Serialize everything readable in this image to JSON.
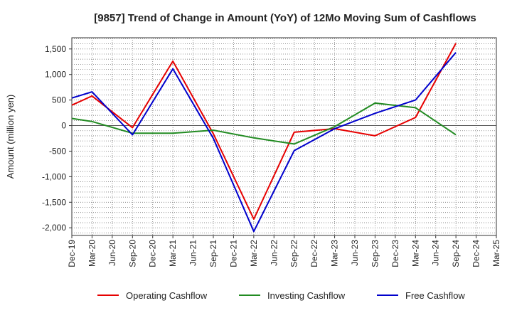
{
  "chart_data": {
    "type": "line",
    "title": "[9857]  Trend of Change in Amount (YoY) of 12Mo Moving Sum of Cashflows",
    "xlabel": "",
    "ylabel": "Amount (million yen)",
    "ylim": [
      -2150,
      1720
    ],
    "yticks": [
      -2000,
      -1500,
      -1000,
      -500,
      0,
      500,
      1000,
      1500
    ],
    "ytick_labels": [
      "-2,000",
      "-1,500",
      "-1,000",
      "-500",
      "0",
      "500",
      "1,000",
      "1,500"
    ],
    "categories": [
      "Dec-19",
      "Mar-20",
      "Jun-20",
      "Sep-20",
      "Dec-20",
      "Mar-21",
      "Jun-21",
      "Sep-21",
      "Dec-21",
      "Mar-22",
      "Jun-22",
      "Sep-22",
      "Dec-22",
      "Mar-23",
      "Jun-23",
      "Sep-23",
      "Dec-23",
      "Mar-24",
      "Jun-24",
      "Sep-24",
      "Dec-24",
      "Mar-25"
    ],
    "grid": true,
    "legend_position": "bottom",
    "series": [
      {
        "name": "Operating Cashflow",
        "color": "#e60000",
        "values": [
          400,
          580,
          null,
          -40,
          null,
          1260,
          null,
          -160,
          null,
          -1830,
          null,
          -130,
          null,
          -60,
          null,
          -200,
          null,
          160,
          null,
          1610,
          null,
          null
        ]
      },
      {
        "name": "Investing Cashflow",
        "color": "#228b22",
        "values": [
          140,
          80,
          null,
          -150,
          null,
          -150,
          null,
          -90,
          null,
          -240,
          null,
          -360,
          null,
          -20,
          null,
          440,
          null,
          350,
          null,
          -180,
          null,
          null
        ]
      },
      {
        "name": "Free Cashflow",
        "color": "#0000cc",
        "values": [
          540,
          660,
          null,
          -180,
          null,
          1110,
          null,
          -250,
          null,
          -2070,
          null,
          -490,
          null,
          -60,
          null,
          240,
          null,
          500,
          null,
          1430,
          null,
          null
        ]
      }
    ]
  }
}
